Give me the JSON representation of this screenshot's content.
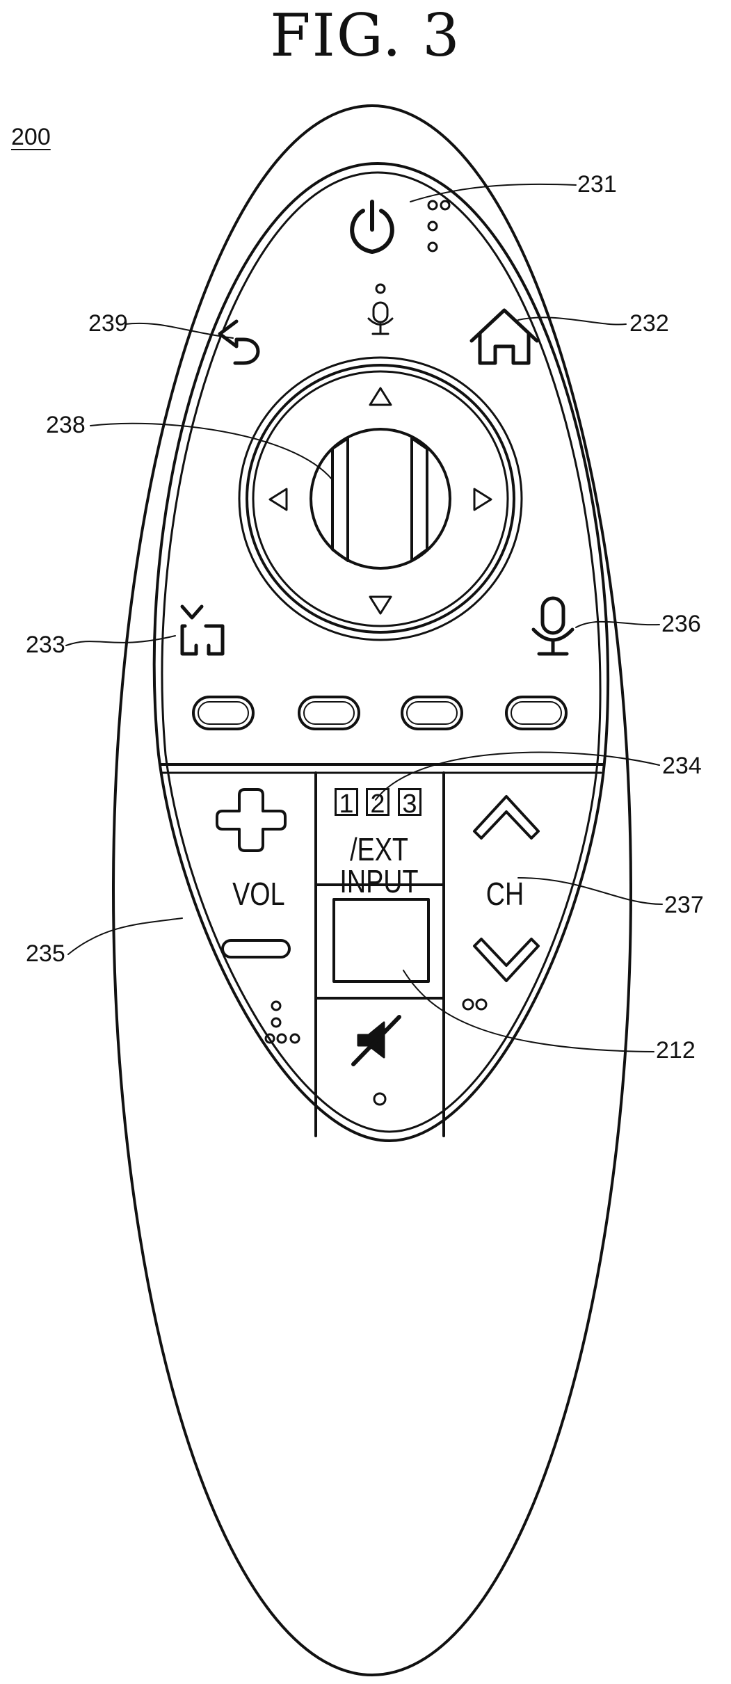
{
  "figure": {
    "title": "FIG. 3"
  },
  "refs": {
    "device": "200",
    "power": "231",
    "home": "232",
    "input_button": "233",
    "number_keys": "234",
    "volume": "235",
    "voice": "236",
    "channel": "237",
    "wheel": "238",
    "back": "239",
    "display": "212"
  },
  "keys": {
    "num1": "1",
    "num2": "2",
    "num3": "3",
    "ext_input": "/EXT INPUT",
    "vol": "VOL",
    "ch": "CH"
  }
}
